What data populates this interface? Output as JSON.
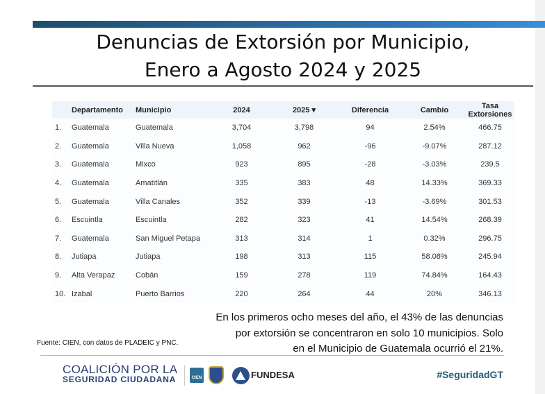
{
  "title": {
    "line1": "Denuncias de Extorsión por Municipio,",
    "line2": "Enero a Agosto 2024 y 2025"
  },
  "table": {
    "headers": [
      "",
      "Departamento",
      "Municipio",
      "2024",
      "2025 ▾",
      "Diferencia",
      "Cambio",
      "Tasa Extorsiones"
    ],
    "rows": [
      [
        "1.",
        "Guatemala",
        "Guatemala",
        "3,704",
        "3,798",
        "94",
        "2.54%",
        "466.75"
      ],
      [
        "2.",
        "Guatemala",
        "Villa Nueva",
        "1,058",
        "962",
        "-96",
        "-9.07%",
        "287.12"
      ],
      [
        "3.",
        "Guatemala",
        "Mixco",
        "923",
        "895",
        "-28",
        "-3.03%",
        "239.5"
      ],
      [
        "4.",
        "Guatemala",
        "Amatitlán",
        "335",
        "383",
        "48",
        "14.33%",
        "369.33"
      ],
      [
        "5.",
        "Guatemala",
        "Villa Canales",
        "352",
        "339",
        "-13",
        "-3.69%",
        "301.53"
      ],
      [
        "6.",
        "Escuintla",
        "Escuintla",
        "282",
        "323",
        "41",
        "14.54%",
        "268.39"
      ],
      [
        "7.",
        "Guatemala",
        "San Miguel Petapa",
        "313",
        "314",
        "1",
        "0.32%",
        "296.75"
      ],
      [
        "8.",
        "Jutiapa",
        "Jutiapa",
        "198",
        "313",
        "115",
        "58.08%",
        "245.94"
      ],
      [
        "9.",
        "Alta Verapaz",
        "Cobán",
        "159",
        "278",
        "119",
        "74.84%",
        "164.43"
      ],
      [
        "10.",
        "Izabal",
        "Puerto Barrios",
        "220",
        "264",
        "44",
        "20%",
        "346.13"
      ]
    ]
  },
  "caption": {
    "line1": "En los primeros ocho meses del año, el 43% de las denuncias",
    "line2": "por extorsión se concentraron en solo 10 municipios. Solo",
    "line3": "en el Municipio de Guatemala ocurrió el 21%."
  },
  "footnote": "Fuente: CIEN, con datos de PLADEIC y PNC.",
  "footer": {
    "coalition_line1": "COALICIÓN POR LA",
    "coalition_line2": "SEGURIDAD CIUDADANA",
    "cien": "CIEN",
    "fundesa": "FUNDESA",
    "hashtag": "#SeguridadGT"
  }
}
